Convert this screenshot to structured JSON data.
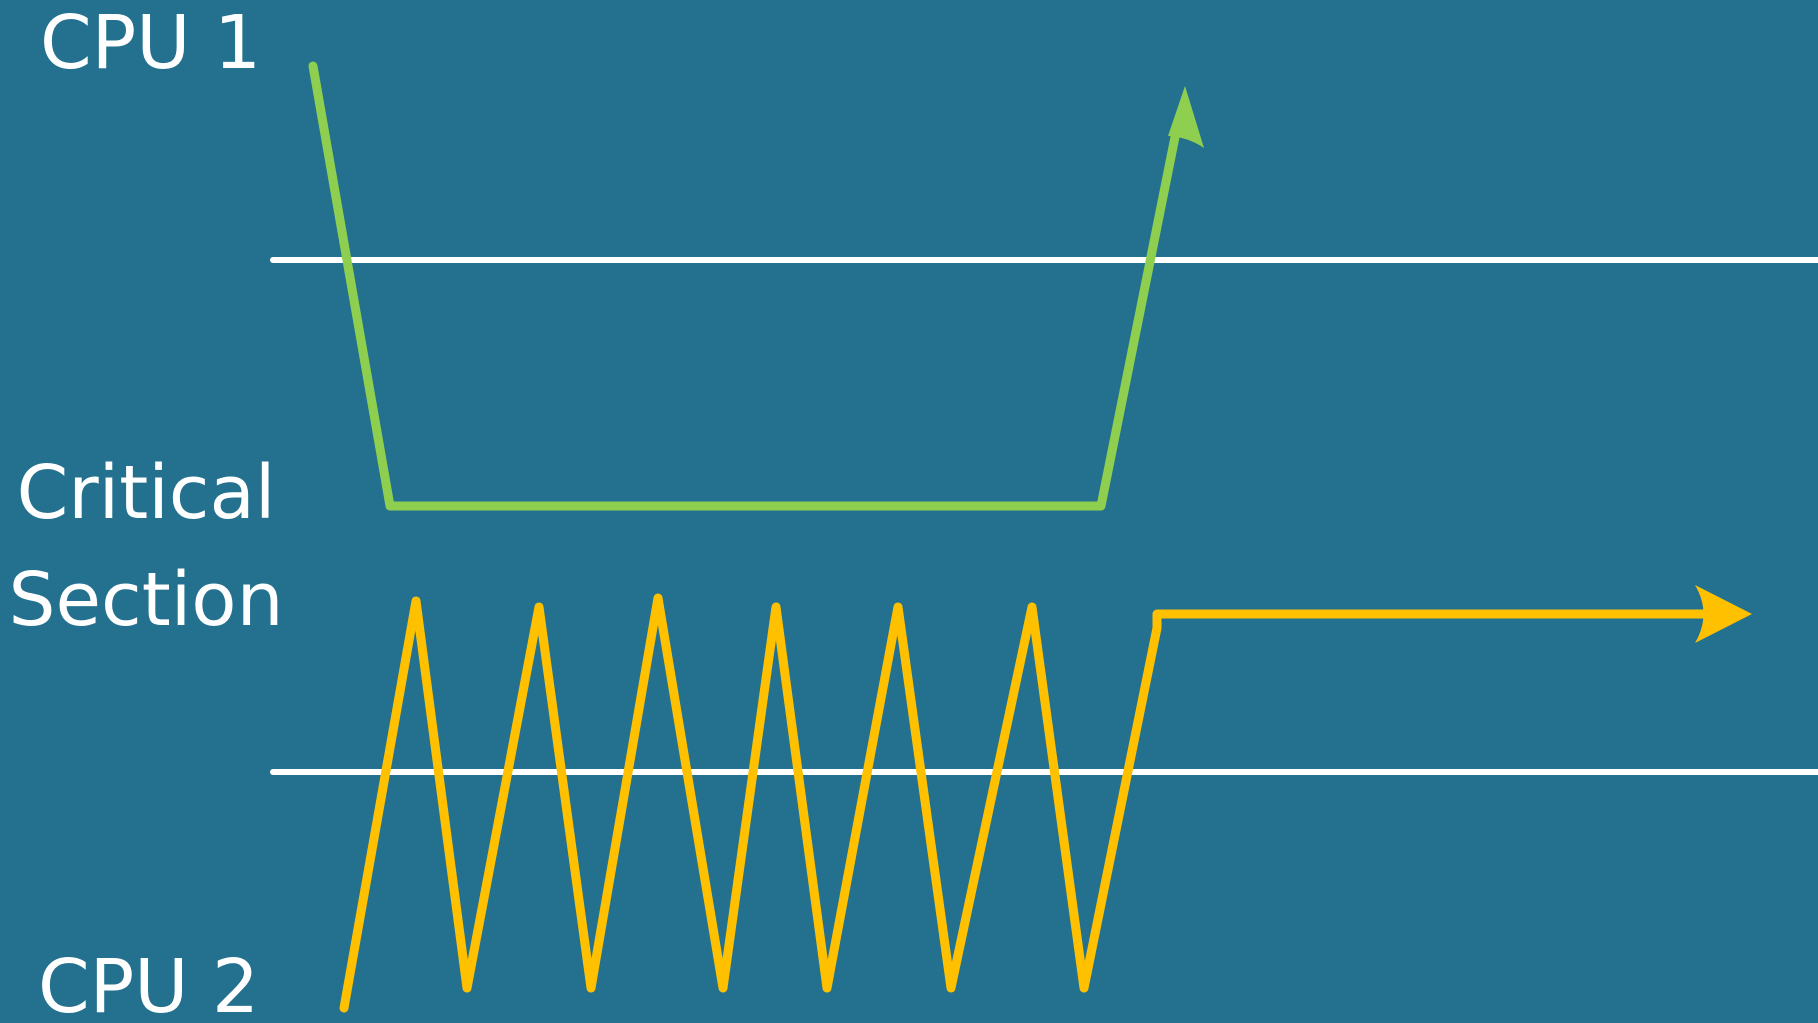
{
  "labels": {
    "cpu1": "CPU 1",
    "critical_section": [
      "Critical",
      "Section"
    ],
    "cpu2": "CPU 2"
  },
  "colors": {
    "background": "#23718f",
    "boundary_lines": "#ffffff",
    "cpu1_path": "#8fcf4f",
    "cpu2_path": "#ffc000",
    "text": "#ffffff"
  },
  "icons": {
    "cpu1_arrowhead": "arrow-up-right-icon",
    "cpu2_arrowhead": "arrow-right-icon"
  }
}
